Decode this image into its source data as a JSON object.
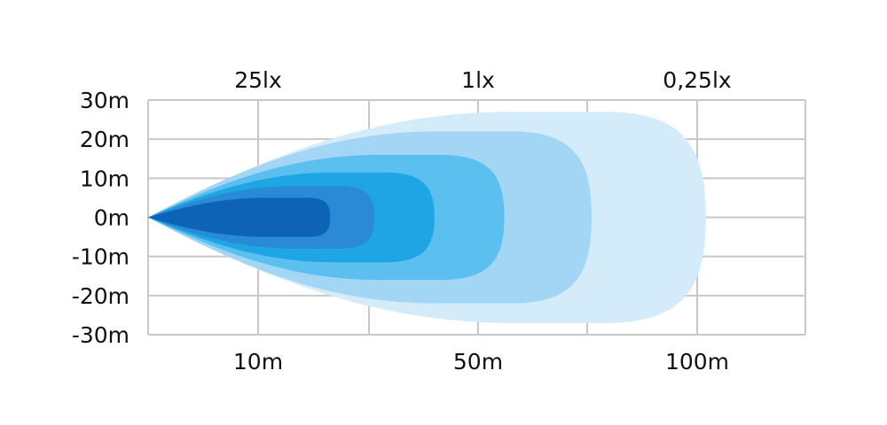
{
  "chart_data": {
    "type": "area",
    "y_ticks": [
      "30m",
      "20m",
      "10m",
      "0m",
      "-10m",
      "-20m",
      "-30m"
    ],
    "y_values": [
      30,
      20,
      10,
      0,
      -10,
      -20,
      -30
    ],
    "x_ticks": [
      {
        "label": "10m",
        "value": 10
      },
      {
        "label": "50m",
        "value": 50
      },
      {
        "label": "100m",
        "value": 100
      }
    ],
    "x_gridline_values": [
      0,
      10,
      30,
      50,
      75,
      100,
      125
    ],
    "top_labels": [
      "25lx",
      "1lx",
      "0,25lx"
    ],
    "grid": true,
    "ylim": [
      -30,
      30
    ],
    "contours": [
      {
        "reach_m": 102,
        "half_width_m": 27,
        "color": "#d4ebfa"
      },
      {
        "reach_m": 76,
        "half_width_m": 22,
        "color": "#a3d6f5"
      },
      {
        "reach_m": 56,
        "half_width_m": 16,
        "color": "#5bc0f0"
      },
      {
        "reach_m": 42,
        "half_width_m": 11.5,
        "color": "#1fa5e3"
      },
      {
        "reach_m": 31,
        "half_width_m": 8,
        "color": "#2a8ad6"
      },
      {
        "reach_m": 23,
        "half_width_m": 5,
        "color": "#0d63b5"
      }
    ],
    "grid_color": "#c8c8c8"
  }
}
